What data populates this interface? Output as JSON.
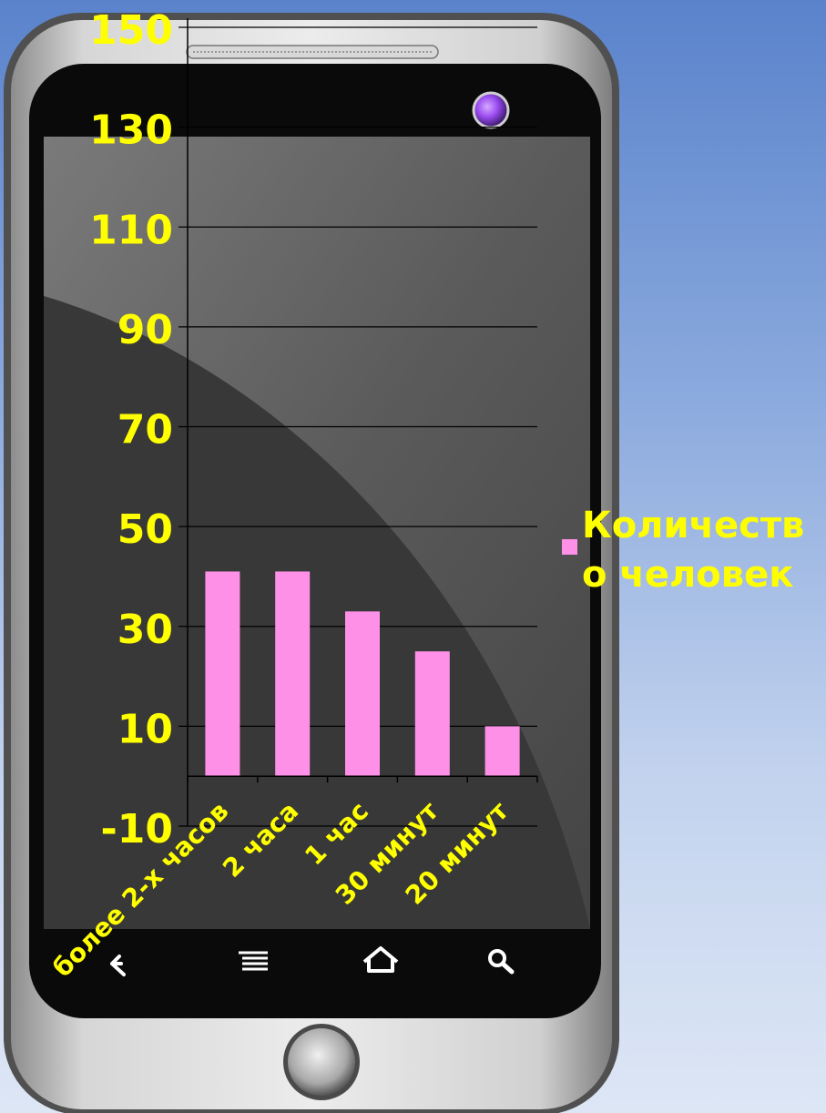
{
  "chart_data": {
    "type": "bar",
    "categories": [
      "более 2-х часов",
      "2 часа",
      "1 час",
      "30 минут",
      "20 минут"
    ],
    "series": [
      {
        "name": "Количество человек",
        "values": [
          41,
          41,
          33,
          25,
          10
        ],
        "color": "#ff90e8"
      }
    ],
    "ylim": [
      -10,
      150
    ],
    "yticks": [
      "150",
      "130",
      "110",
      "90",
      "70",
      "50",
      "30",
      "10",
      "-10"
    ],
    "grid": true,
    "legend_position": "right"
  },
  "device": {
    "nav_icons": [
      "back-arrow-icon",
      "menu-icon",
      "home-icon",
      "search-icon"
    ]
  }
}
